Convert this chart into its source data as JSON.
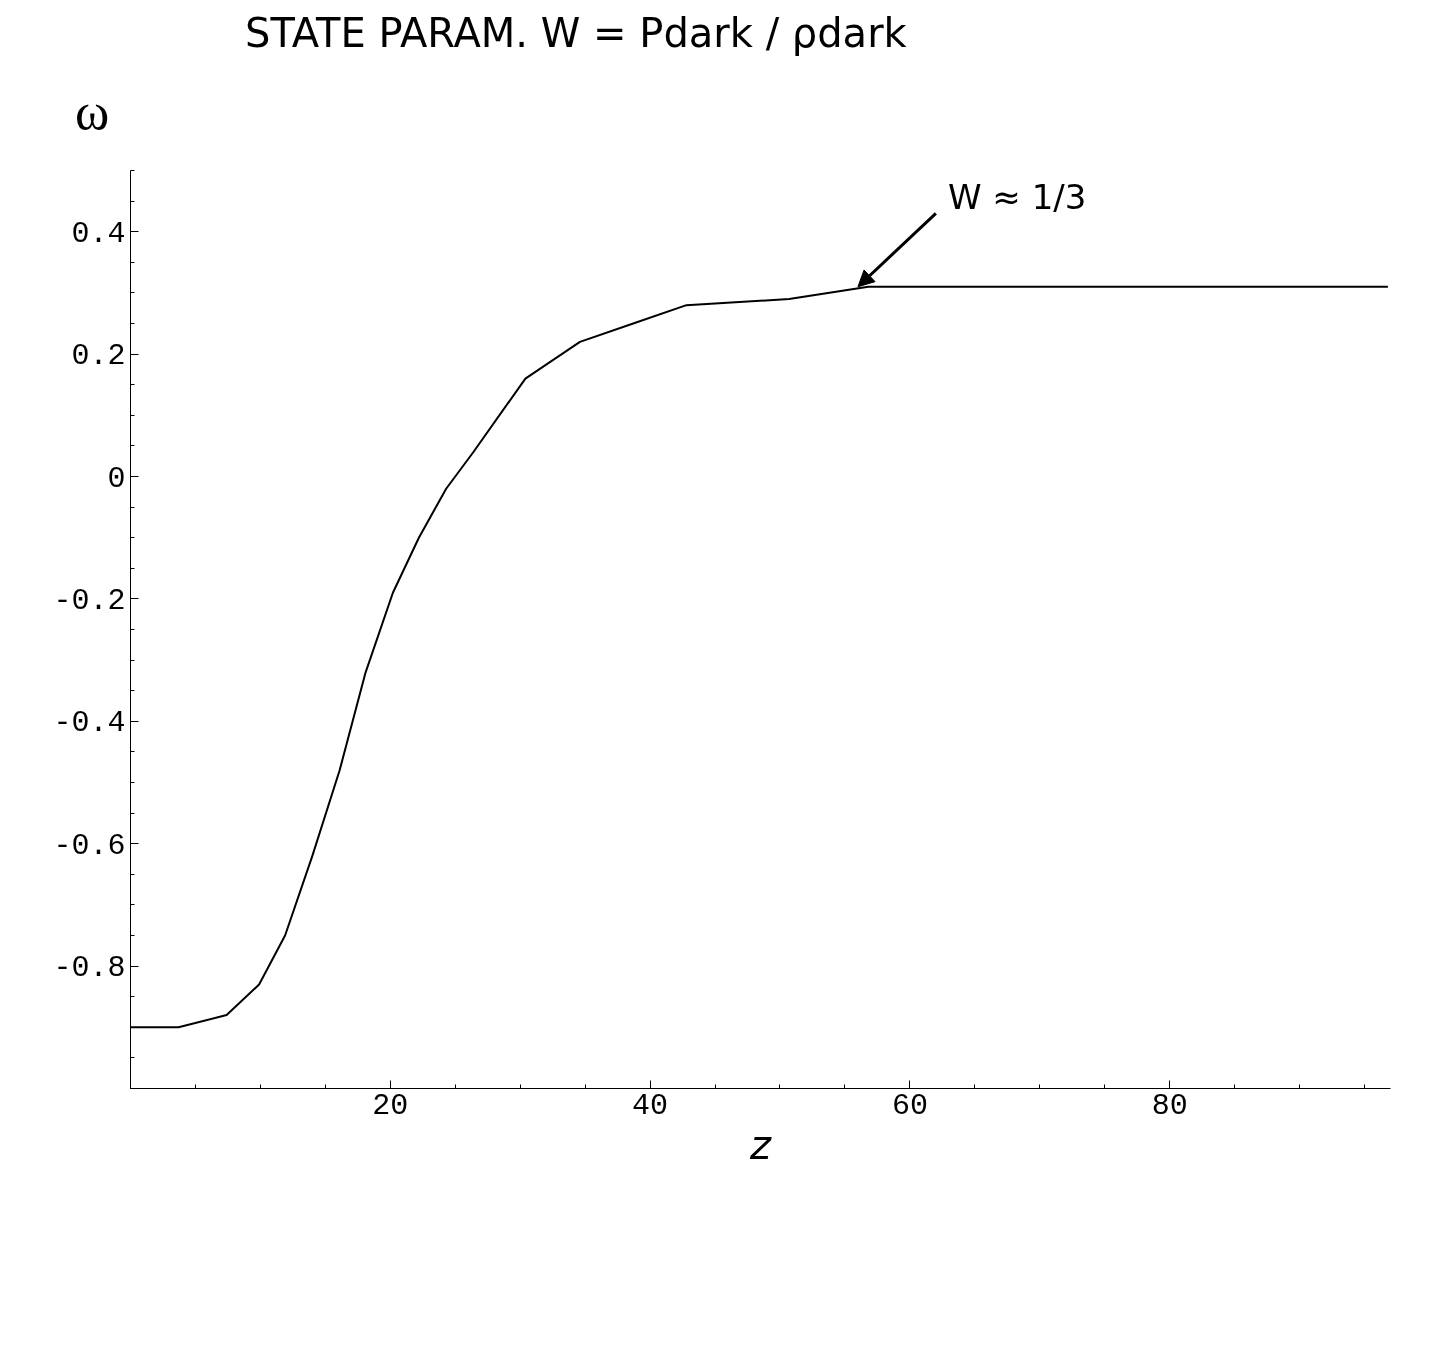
{
  "chart_data": {
    "type": "line",
    "xlabel": "z",
    "ylabel": "ω",
    "x": [
      0,
      3.7,
      7.4,
      9.9,
      11.9,
      14,
      16.1,
      18.1,
      20.2,
      22.2,
      24.3,
      26.4,
      30.4,
      34.6,
      38.7,
      42.8,
      50.7,
      56.8,
      71.6,
      96.8
    ],
    "series": [
      {
        "color": "#000000",
        "values": [
          -0.9,
          -0.9,
          -0.88,
          -0.83,
          -0.75,
          -0.62,
          -0.48,
          -0.32,
          -0.19,
          -0.1,
          -0.02,
          0.04,
          0.16,
          0.22,
          0.25,
          0.28,
          0.29,
          0.31,
          0.31,
          0.31
        ]
      }
    ],
    "xlim": [
      0,
      97
    ],
    "ylim": [
      -1.0,
      0.5
    ],
    "xticks": [
      20,
      40,
      60,
      80
    ],
    "yticks": [
      {
        "value": -0.8,
        "label": "-0.8"
      },
      {
        "value": -0.6,
        "label": "-0.6"
      },
      {
        "value": -0.4,
        "label": "-0.4"
      },
      {
        "value": -0.2,
        "label": "-0.2"
      },
      0,
      {
        "value": 0.2,
        "label": "0.2"
      },
      {
        "value": 0.4,
        "label": "0.4"
      }
    ],
    "annotations": [
      "STATE PARAM. W = Pdark / ρdark",
      {
        "text": "W ≈ 1/3",
        "x": 56,
        "y": 0.31
      }
    ],
    "grid": false,
    "marker": "none",
    "line_style": "solid"
  }
}
